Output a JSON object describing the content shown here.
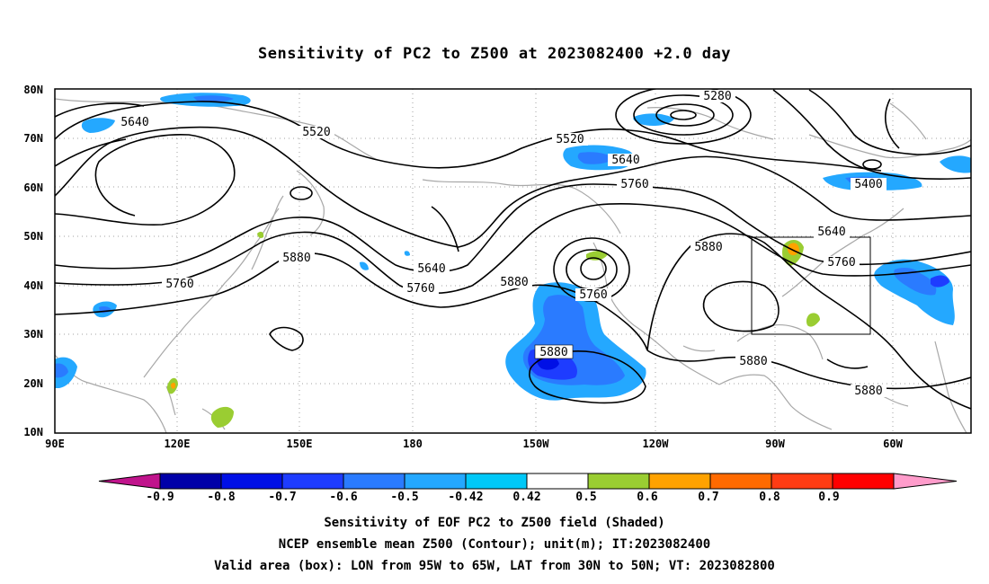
{
  "title": "Sensitivity of PC2 to Z500 at 2023082400 +2.0 day",
  "lat_labels": [
    "80N",
    "70N",
    "60N",
    "50N",
    "40N",
    "30N",
    "20N",
    "10N"
  ],
  "lon_labels": [
    "90E",
    "120E",
    "150E",
    "180",
    "150W",
    "120W",
    "90W",
    "60W"
  ],
  "contour_labels": [
    "5280",
    "5400",
    "5520",
    "5520",
    "5640",
    "5640",
    "5640",
    "5640",
    "5760",
    "5760",
    "5760",
    "5760",
    "5760",
    "5880",
    "5880",
    "5880",
    "5880",
    "5880",
    "5880"
  ],
  "colorbar": {
    "labels": [
      "-0.9",
      "-0.8",
      "-0.7",
      "-0.6",
      "-0.5",
      "-0.42",
      "0.42",
      "0.5",
      "0.6",
      "0.7",
      "0.8",
      "0.9"
    ],
    "colors": [
      "#c0148c",
      "#0000a8",
      "#0010e6",
      "#1e3cff",
      "#2a7bff",
      "#24a8ff",
      "#00c8f8",
      "#ffffff",
      "#9acd32",
      "#ffa200",
      "#ff6a00",
      "#ff3c14",
      "#ff0000",
      "#ff9ccb"
    ]
  },
  "captions": [
    "Sensitivity of EOF PC2 to Z500 field (Shaded)",
    "NCEP ensemble mean Z500 (Contour); unit(m); IT:2023082400",
    "Valid area (box): LON from 95W to 65W, LAT from 30N to 50N; VT: 2023082800"
  ]
}
